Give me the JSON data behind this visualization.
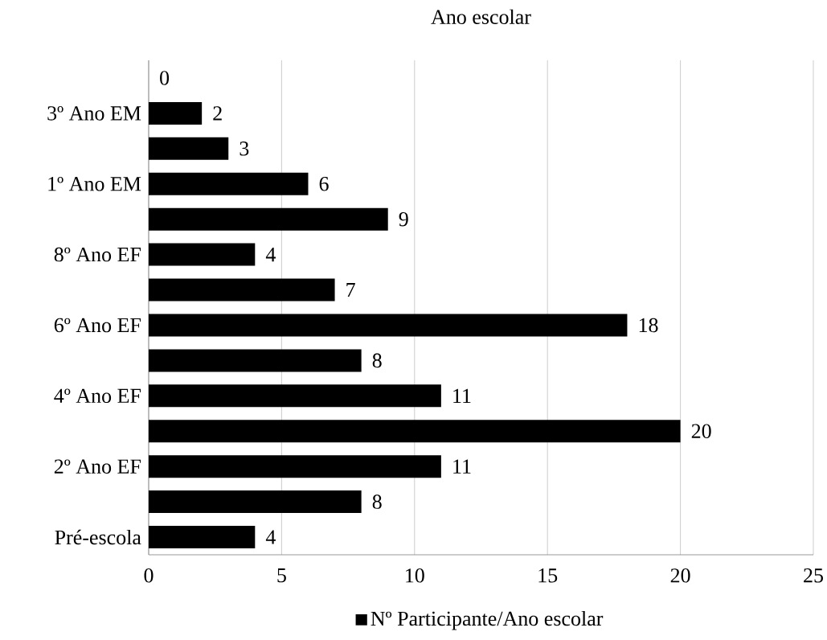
{
  "chart_data": {
    "type": "bar",
    "orientation": "horizontal",
    "title": "Ano escolar",
    "categories": [
      null,
      "3º Ano EM",
      null,
      "1º Ano EM",
      null,
      "8º Ano EF",
      null,
      "6º Ano EF",
      null,
      "4º Ano EF",
      null,
      "2º Ano EF",
      null,
      "Pré-escola"
    ],
    "series": [
      {
        "name": "Nº Participante/Ano escolar",
        "color": "#000000",
        "values": [
          0,
          2,
          3,
          6,
          9,
          4,
          7,
          18,
          8,
          11,
          20,
          11,
          8,
          4
        ]
      }
    ],
    "xlim": [
      0,
      25
    ],
    "xticks": [
      0,
      5,
      10,
      15,
      20,
      25
    ],
    "grid": "x",
    "legend": "bottom",
    "data_labels": true
  }
}
